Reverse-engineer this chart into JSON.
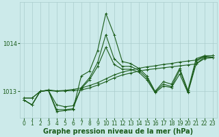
{
  "title": "Graphe pression niveau de la mer (hPa)",
  "background_color": "#cceaea",
  "grid_color": "#aacccc",
  "line_color": "#1a5c1a",
  "xlim": [
    -0.5,
    23.5
  ],
  "ylim": [
    1012.45,
    1014.85
  ],
  "yticks": [
    1013,
    1014
  ],
  "xticks": [
    0,
    1,
    2,
    3,
    4,
    5,
    6,
    7,
    8,
    9,
    10,
    11,
    12,
    13,
    14,
    15,
    16,
    17,
    18,
    19,
    20,
    21,
    22,
    23
  ],
  "series": [
    {
      "name": "line_peak_high",
      "y": [
        1012.82,
        1012.72,
        1013.0,
        1013.02,
        1012.58,
        1012.6,
        1012.62,
        1013.32,
        1013.42,
        1013.85,
        1014.62,
        1014.18,
        1013.62,
        1013.58,
        1013.48,
        1013.32,
        1013.0,
        1013.2,
        1013.15,
        1013.48,
        1013.02,
        1013.68,
        1013.74,
        1013.74
      ]
    },
    {
      "name": "line_peak_med",
      "y": [
        1012.82,
        1012.72,
        1013.0,
        1013.02,
        1012.62,
        1012.62,
        1012.64,
        1013.08,
        1013.28,
        1013.6,
        1014.18,
        1013.68,
        1013.52,
        1013.52,
        1013.44,
        1013.28,
        1012.99,
        1013.15,
        1013.1,
        1013.44,
        1012.99,
        1013.62,
        1013.73,
        1013.74
      ]
    },
    {
      "name": "line_shallow_peak",
      "y": [
        1012.82,
        1012.72,
        1013.0,
        1013.02,
        1012.72,
        1012.68,
        1012.7,
        1013.06,
        1013.24,
        1013.52,
        1013.92,
        1013.56,
        1013.46,
        1013.46,
        1013.4,
        1013.24,
        1012.97,
        1013.11,
        1013.08,
        1013.36,
        1012.97,
        1013.57,
        1013.71,
        1013.71
      ]
    },
    {
      "name": "line_nearly_flat_low",
      "y": [
        1012.86,
        1012.86,
        1013.0,
        1013.02,
        1013.0,
        1013.01,
        1013.02,
        1013.03,
        1013.07,
        1013.13,
        1013.2,
        1013.28,
        1013.34,
        1013.38,
        1013.42,
        1013.45,
        1013.47,
        1013.49,
        1013.51,
        1013.53,
        1013.55,
        1013.57,
        1013.68,
        1013.7
      ]
    },
    {
      "name": "line_nearly_flat_high",
      "y": [
        1012.86,
        1012.86,
        1013.0,
        1013.03,
        1013.01,
        1013.02,
        1013.04,
        1013.07,
        1013.12,
        1013.18,
        1013.26,
        1013.34,
        1013.4,
        1013.44,
        1013.48,
        1013.51,
        1013.53,
        1013.56,
        1013.58,
        1013.61,
        1013.63,
        1013.65,
        1013.73,
        1013.74
      ]
    }
  ],
  "tick_fontsize": 6,
  "xlabel_fontsize": 7,
  "marker_size": 2.2,
  "linewidth": 0.8
}
